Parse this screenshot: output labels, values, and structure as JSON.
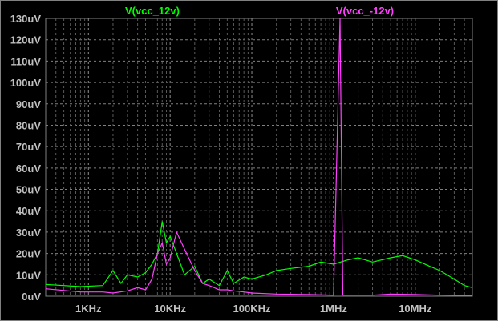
{
  "chart_data": {
    "type": "line",
    "x_scale": "log",
    "xlim_hz": [
      300,
      50000000
    ],
    "ylim_uV": [
      0,
      130
    ],
    "grid": true,
    "y_ticks": [
      {
        "v": 0,
        "label": "0uV"
      },
      {
        "v": 10,
        "label": "10uV"
      },
      {
        "v": 20,
        "label": "20uV"
      },
      {
        "v": 30,
        "label": "30uV"
      },
      {
        "v": 40,
        "label": "40uV"
      },
      {
        "v": 50,
        "label": "50uV"
      },
      {
        "v": 60,
        "label": "60uV"
      },
      {
        "v": 70,
        "label": "70uV"
      },
      {
        "v": 80,
        "label": "80uV"
      },
      {
        "v": 90,
        "label": "90uV"
      },
      {
        "v": 100,
        "label": "100uV"
      },
      {
        "v": 110,
        "label": "110uV"
      },
      {
        "v": 120,
        "label": "120uV"
      },
      {
        "v": 130,
        "label": "130uV"
      }
    ],
    "x_ticks": [
      {
        "v": 1000,
        "label": "1KHz"
      },
      {
        "v": 10000,
        "label": "10KHz"
      },
      {
        "v": 100000,
        "label": "100KHz"
      },
      {
        "v": 1000000,
        "label": "1MHz"
      },
      {
        "v": 10000000,
        "label": "10MHz"
      }
    ],
    "series": [
      {
        "name": "V(vcc_12v)",
        "color": "#00ff00",
        "points": [
          [
            300,
            5.5
          ],
          [
            800,
            4.5
          ],
          [
            1500,
            5
          ],
          [
            2000,
            12
          ],
          [
            2500,
            6
          ],
          [
            3000,
            10
          ],
          [
            4000,
            9
          ],
          [
            5000,
            11
          ],
          [
            6000,
            15
          ],
          [
            7000,
            20
          ],
          [
            8000,
            35
          ],
          [
            9000,
            25
          ],
          [
            10000,
            28
          ],
          [
            12000,
            20
          ],
          [
            15000,
            10
          ],
          [
            20000,
            14
          ],
          [
            25000,
            6
          ],
          [
            30000,
            8
          ],
          [
            40000,
            5
          ],
          [
            50000,
            12
          ],
          [
            60000,
            6
          ],
          [
            80000,
            9
          ],
          [
            100000,
            8
          ],
          [
            150000,
            10
          ],
          [
            200000,
            12
          ],
          [
            300000,
            13
          ],
          [
            500000,
            14
          ],
          [
            700000,
            16
          ],
          [
            1000000,
            15
          ],
          [
            1500000,
            17
          ],
          [
            2000000,
            18
          ],
          [
            3000000,
            16
          ],
          [
            5000000,
            18
          ],
          [
            7000000,
            19
          ],
          [
            10000000,
            17
          ],
          [
            15000000,
            14
          ],
          [
            20000000,
            12
          ],
          [
            30000000,
            8
          ],
          [
            40000000,
            5
          ],
          [
            50000000,
            4
          ]
        ]
      },
      {
        "name": "V(vcc_-12v)",
        "color": "#ff40ff",
        "points": [
          [
            300,
            3.5
          ],
          [
            800,
            2
          ],
          [
            1500,
            2
          ],
          [
            2000,
            1.5
          ],
          [
            3000,
            2.5
          ],
          [
            4000,
            4
          ],
          [
            5000,
            3
          ],
          [
            6000,
            8
          ],
          [
            7000,
            20
          ],
          [
            8000,
            25
          ],
          [
            9000,
            15
          ],
          [
            10000,
            18
          ],
          [
            12000,
            30
          ],
          [
            15000,
            22
          ],
          [
            20000,
            12
          ],
          [
            25000,
            6
          ],
          [
            30000,
            5
          ],
          [
            40000,
            3
          ],
          [
            50000,
            3
          ],
          [
            60000,
            2.5
          ],
          [
            80000,
            2
          ],
          [
            100000,
            1.5
          ],
          [
            200000,
            1
          ],
          [
            500000,
            0.8
          ],
          [
            1000000,
            0.5
          ],
          [
            1200000,
            130
          ],
          [
            1300000,
            0.5
          ],
          [
            3000000,
            0.5
          ],
          [
            5000000,
            1
          ],
          [
            10000000,
            0.8
          ],
          [
            20000000,
            0.5
          ],
          [
            50000000,
            0.3
          ]
        ]
      }
    ]
  }
}
